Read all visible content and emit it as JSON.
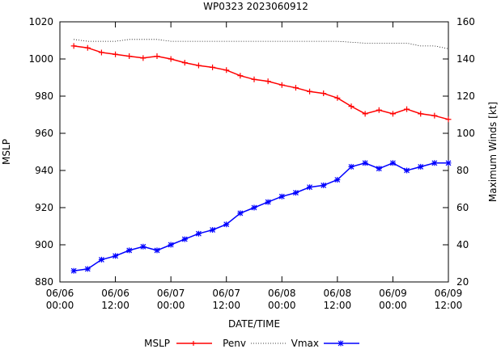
{
  "chart_data": {
    "type": "line",
    "title": "WP0323 2023060912",
    "xlabel": "DATE/TIME",
    "ylabel": "MSLP",
    "y2label": "Maximum Winds [kt]",
    "x_ticks": [
      {
        "top": "06/06",
        "bottom": "00:00"
      },
      {
        "top": "06/06",
        "bottom": "12:00"
      },
      {
        "top": "06/07",
        "bottom": "00:00"
      },
      {
        "top": "06/07",
        "bottom": "12:00"
      },
      {
        "top": "06/08",
        "bottom": "00:00"
      },
      {
        "top": "06/08",
        "bottom": "12:00"
      },
      {
        "top": "06/09",
        "bottom": "00:00"
      },
      {
        "top": "06/09",
        "bottom": "12:00"
      }
    ],
    "y_ticks": [
      "880",
      "900",
      "920",
      "940",
      "960",
      "980",
      "1000",
      "1020"
    ],
    "y2_ticks": [
      "20",
      "40",
      "60",
      "80",
      "100",
      "120",
      "140",
      "160"
    ],
    "ylim": [
      880,
      1020
    ],
    "y2lim": [
      20,
      160
    ],
    "x_hours_range": [
      0,
      84
    ],
    "grid": false,
    "legend_position": "bottom",
    "legend_label": "MSLP",
    "series": [
      {
        "name": "Penv",
        "axis": "left",
        "color": "#ff0000",
        "marker": "plus",
        "x_hours": [
          3,
          6,
          9,
          12,
          15,
          18,
          21,
          24,
          27,
          30,
          33,
          36,
          39,
          42,
          45,
          48,
          51,
          54,
          57,
          60,
          63,
          66,
          69,
          72,
          75,
          78,
          81,
          84
        ],
        "values": [
          1007,
          1006,
          1003.5,
          1002.5,
          1001.5,
          1000.5,
          1001.5,
          1000,
          998,
          996.5,
          995.5,
          994,
          991,
          989,
          988,
          986,
          984.5,
          982.5,
          981.5,
          979,
          974.5,
          970.5,
          972.5,
          970.5,
          973,
          970.5,
          969.5,
          967.5
        ]
      },
      {
        "name": "Vmax",
        "axis": "right",
        "color": "#0000ff",
        "marker": "star",
        "x_hours": [
          3,
          6,
          9,
          12,
          15,
          18,
          21,
          24,
          27,
          30,
          33,
          36,
          39,
          42,
          45,
          48,
          51,
          54,
          57,
          60,
          63,
          66,
          69,
          72,
          75,
          78,
          81,
          84
        ],
        "values": [
          26,
          27,
          32,
          34,
          37,
          39,
          37,
          40,
          43,
          46,
          48,
          51,
          57,
          60,
          63,
          66,
          68,
          71,
          72,
          75,
          82,
          84,
          81,
          84,
          80,
          82,
          84,
          84
        ]
      },
      {
        "name": "MSLP",
        "axis": "left",
        "color": "#000000",
        "style": "dotted",
        "x_hours": [
          3,
          6,
          9,
          12,
          15,
          18,
          21,
          24,
          27,
          30,
          33,
          36,
          39,
          42,
          45,
          48,
          51,
          54,
          57,
          60,
          63,
          66,
          69,
          72,
          75,
          78,
          81,
          84
        ],
        "values": [
          1010.5,
          1009.5,
          1009.5,
          1009.5,
          1010.5,
          1010.5,
          1010.5,
          1009.5,
          1009.5,
          1009.5,
          1009.5,
          1009.5,
          1009.5,
          1009.5,
          1009.5,
          1009.5,
          1009.5,
          1009.5,
          1009.5,
          1009.5,
          1009,
          1008.5,
          1008.5,
          1008.5,
          1008.5,
          1007,
          1007,
          1005.5
        ]
      }
    ]
  }
}
